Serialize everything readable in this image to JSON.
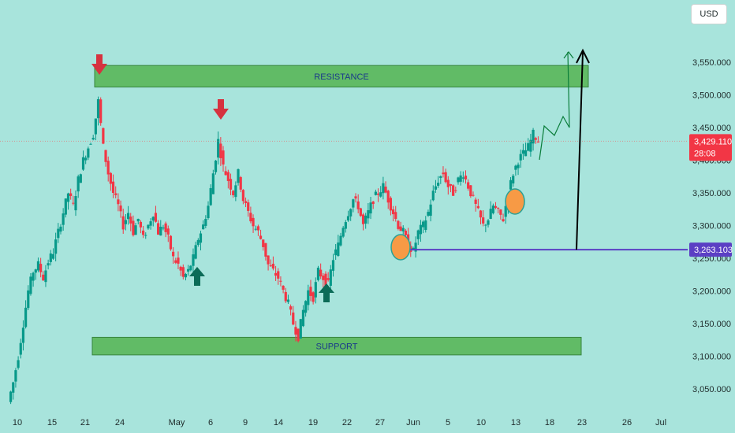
{
  "header": {
    "currency_button": "USD"
  },
  "chart_data": {
    "type": "candlestick",
    "y_ticks": [
      "3,550.000",
      "3,500.000",
      "3,450.000",
      "3,400.000",
      "3,350.000",
      "3,300.000",
      "3,250.000",
      "3,200.000",
      "3,150.000",
      "3,100.000",
      "3,050.000"
    ],
    "x_ticks": [
      "10",
      "15",
      "21",
      "24",
      "May",
      "6",
      "9",
      "14",
      "19",
      "22",
      "27",
      "Jun",
      "5",
      "10",
      "13",
      "18",
      "23",
      "26",
      "Jul"
    ],
    "current_price": {
      "value": "3,429.110",
      "countdown": "28:08",
      "y": 3429.11
    },
    "level_line": {
      "value": "3,263.103",
      "y": 3263.103
    },
    "resistance_zone": {
      "label": "RESISTANCE",
      "y_low": 3512,
      "y_high": 3545
    },
    "support_zone": {
      "label": "SUPPORT",
      "y_low": 3102,
      "y_high": 3129
    },
    "colors": {
      "background": "#a8e4dc",
      "up_candle": "#08998a",
      "down_candle": "#f23645",
      "zone_fill": "#5cb85c",
      "level_line": "#5b3fc4",
      "price_badge": "#f23645",
      "level_badge": "#5b3fc4",
      "red_arrow": "#d6323f",
      "green_arrow": "#0b6b57",
      "circle": "#f79a45"
    },
    "annotations": {
      "red_arrows": [
        "swing-high-1",
        "swing-high-2"
      ],
      "green_arrows": [
        "swing-low-1",
        "swing-low-2"
      ],
      "circles": [
        "retest-1",
        "retest-2"
      ],
      "projection_arrows": [
        "zigzag-projection",
        "vertical-projection"
      ]
    },
    "price_path_approx": [
      3030,
      3060,
      3100,
      3150,
      3200,
      3230,
      3240,
      3220,
      3245,
      3260,
      3290,
      3320,
      3350,
      3330,
      3370,
      3400,
      3420,
      3440,
      3490,
      3420,
      3380,
      3350,
      3330,
      3300,
      3320,
      3290,
      3310,
      3280,
      3300,
      3320,
      3290,
      3300,
      3280,
      3250,
      3240,
      3220,
      3230,
      3250,
      3280,
      3300,
      3330,
      3380,
      3430,
      3390,
      3370,
      3350,
      3380,
      3340,
      3320,
      3300,
      3290,
      3270,
      3240,
      3230,
      3220,
      3200,
      3180,
      3150,
      3130,
      3170,
      3200,
      3190,
      3230,
      3220,
      3210,
      3250,
      3270,
      3300,
      3320,
      3340,
      3330,
      3300,
      3320,
      3340,
      3350,
      3360,
      3340,
      3320,
      3300,
      3290,
      3270,
      3260,
      3290,
      3300,
      3320,
      3350,
      3370,
      3380,
      3360,
      3350,
      3370,
      3380,
      3360,
      3340,
      3320,
      3300,
      3310,
      3330,
      3320,
      3310,
      3350,
      3380,
      3400,
      3410,
      3420,
      3440,
      3430
    ]
  }
}
